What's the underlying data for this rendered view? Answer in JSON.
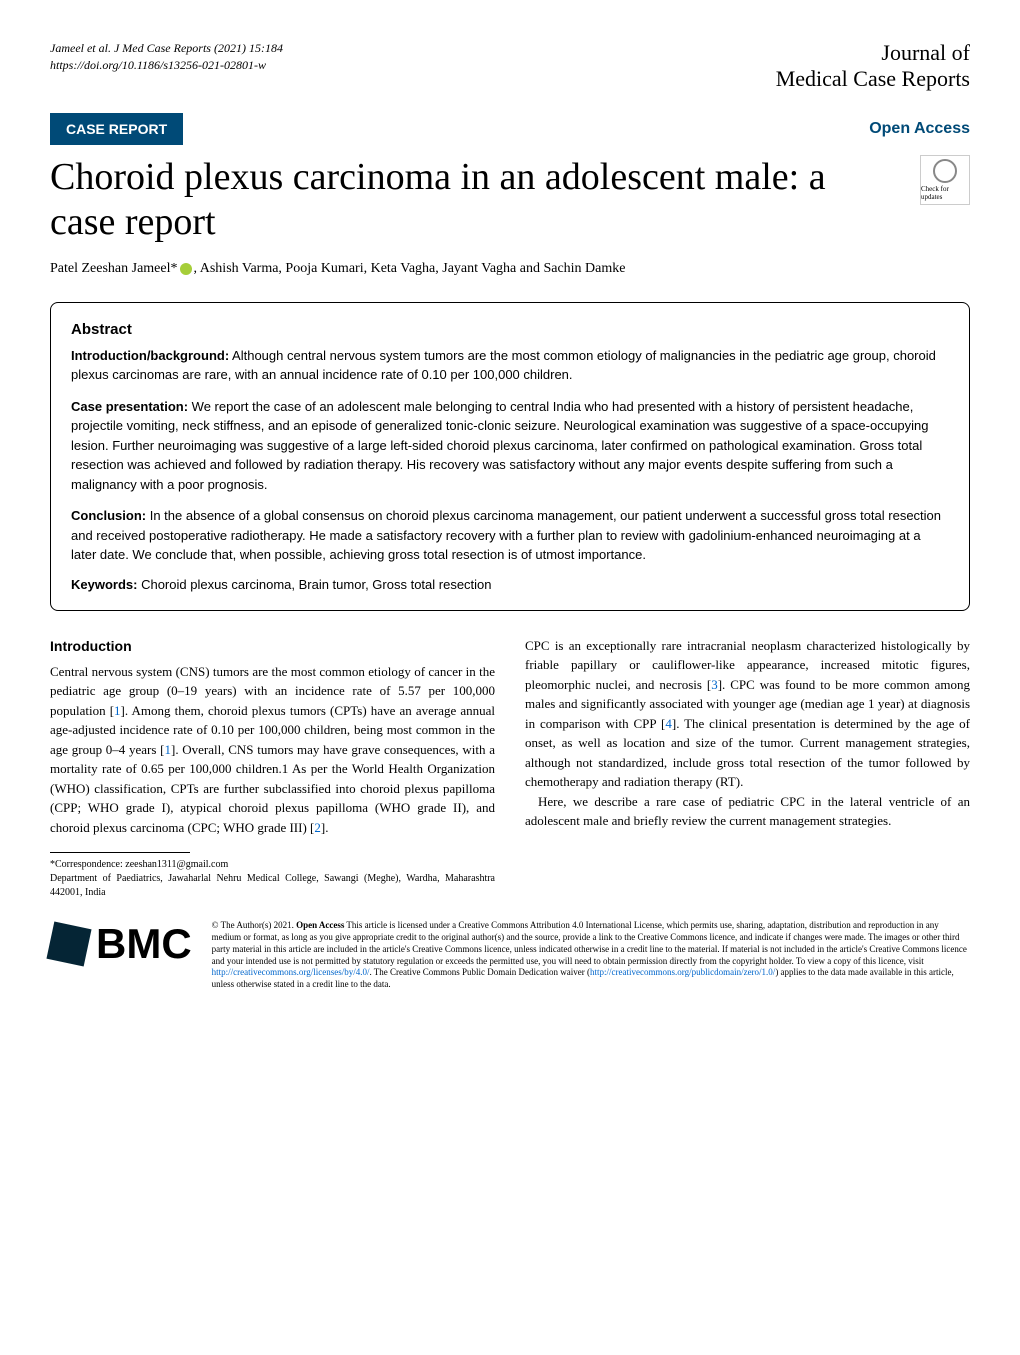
{
  "header": {
    "citation_line1": "Jameel et al. J Med Case Reports     (2021) 15:184",
    "citation_line2": "https://doi.org/10.1186/s13256-021-02801-w",
    "journal_line1": "Journal of",
    "journal_line2": "Medical Case Reports"
  },
  "badges": {
    "case_report": "CASE REPORT",
    "open_access": "Open Access",
    "check_updates": "Check for updates"
  },
  "article": {
    "title": "Choroid plexus carcinoma in an adolescent male: a case report",
    "authors": "Patel Zeeshan Jameel*   , Ashish Varma, Pooja Kumari, Keta Vagha, Jayant Vagha and Sachin Damke"
  },
  "abstract": {
    "heading": "Abstract",
    "intro_label": "Introduction/background:",
    "intro_text": " Although central nervous system tumors are the most common etiology of malignancies in the pediatric age group, choroid plexus carcinomas are rare, with an annual incidence rate of 0.10 per 100,000 children.",
    "case_label": "Case presentation:",
    "case_text": " We report the case of an adolescent male belonging to central India who had presented with a history of persistent headache, projectile vomiting, neck stiffness, and an episode of generalized tonic-clonic seizure. Neurological examination was suggestive of a space-occupying lesion. Further neuroimaging was suggestive of a large left-sided choroid plexus carcinoma, later confirmed on pathological examination. Gross total resection was achieved and followed by radiation therapy. His recovery was satisfactory without any major events despite suffering from such a malignancy with a poor prognosis.",
    "conclusion_label": "Conclusion:",
    "conclusion_text": " In the absence of a global consensus on choroid plexus carcinoma management, our patient underwent a successful gross total resection and received postoperative radiotherapy. He made a satisfactory recovery with a further plan to review with gadolinium-enhanced neuroimaging at a later date. We conclude that, when possible, achieving gross total resection is of utmost importance.",
    "keywords_label": "Keywords:",
    "keywords_text": " Choroid plexus carcinoma, Brain tumor, Gross total resection"
  },
  "body": {
    "intro_heading": "Introduction",
    "col1_p1_a": "Central nervous system (CNS) tumors are the most common etiology of cancer in the pediatric age group (0–19 years) with an incidence rate of 5.57 per 100,000 population [",
    "ref1": "1",
    "col1_p1_b": "]. Among them, choroid plexus tumors (CPTs) have an average annual age-adjusted incidence rate of 0.10 per 100,000 children, being most common in the age group 0–4 years [",
    "ref1b": "1",
    "col1_p1_c": "]. Overall, CNS tumors may have grave consequences, with a mortality rate of 0.65 per 100,000 children.1 As per the World Health Organization (WHO) classification, CPTs are further subclassified into choroid plexus papilloma (CPP; WHO grade I), atypical choroid plexus papilloma (WHO grade II), and choroid plexus carcinoma (CPC; WHO grade III) [",
    "ref2": "2",
    "col1_p1_d": "].",
    "col2_p1_a": "CPC is an exceptionally rare intracranial neoplasm characterized histologically by friable papillary or cauliflower-like appearance, increased mitotic figures, pleomorphic nuclei, and necrosis [",
    "ref3": "3",
    "col2_p1_b": "]. CPC was found to be more common among males and significantly associated with younger age (median age 1 year) at diagnosis in comparison with CPP [",
    "ref4": "4",
    "col2_p1_c": "]. The clinical presentation is determined by the age of onset, as well as location and size of the tumor. Current management strategies, although not standardized, include gross total resection of the tumor followed by chemotherapy and radiation therapy (RT).",
    "col2_p2": "Here, we describe a rare case of pediatric CPC in the lateral ventricle of an adolescent male and briefly review the current management strategies."
  },
  "correspondence": {
    "line1": "*Correspondence:  zeeshan1311@gmail.com",
    "line2": "Department of Paediatrics, Jawaharlal Nehru Medical College, Sawangi (Meghe), Wardha, Maharashtra 442001, India"
  },
  "footer": {
    "bmc": "BMC",
    "license_a": "© The Author(s) 2021. ",
    "license_bold": "Open Access",
    "license_b": " This article is licensed under a Creative Commons Attribution 4.0 International License, which permits use, sharing, adaptation, distribution and reproduction in any medium or format, as long as you give appropriate credit to the original author(s) and the source, provide a link to the Creative Commons licence, and indicate if changes were made. The images or other third party material in this article are included in the article's Creative Commons licence, unless indicated otherwise in a credit line to the material. If material is not included in the article's Creative Commons licence and your intended use is not permitted by statutory regulation or exceeds the permitted use, you will need to obtain permission directly from the copyright holder. To view a copy of this licence, visit ",
    "license_url1": "http://creativecommons.org/licenses/by/4.0/",
    "license_c": ". The Creative Commons Public Domain Dedication waiver (",
    "license_url2": "http://creativecommons.org/publicdomain/zero/1.0/",
    "license_d": ") applies to the data made available in this article, unless otherwise stated in a credit line to the data."
  },
  "colors": {
    "badge_bg": "#004a77",
    "link_color": "#0066cc",
    "orcid": "#a6ce39"
  }
}
